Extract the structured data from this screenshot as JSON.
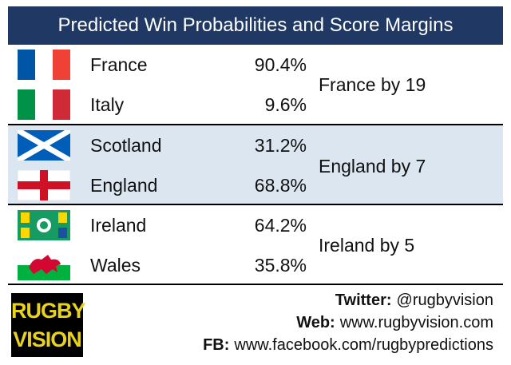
{
  "header": {
    "title": "Predicted Win Probabilities and Score Margins"
  },
  "matches": [
    {
      "teams": [
        {
          "name": "France",
          "probability": "90.4%"
        },
        {
          "name": "Italy",
          "probability": "9.6%"
        }
      ],
      "margin": "France by 19"
    },
    {
      "teams": [
        {
          "name": "Scotland",
          "probability": "31.2%"
        },
        {
          "name": "England",
          "probability": "68.8%"
        }
      ],
      "margin": "England by 7"
    },
    {
      "teams": [
        {
          "name": "Ireland",
          "probability": "64.2%"
        },
        {
          "name": "Wales",
          "probability": "35.8%"
        }
      ],
      "margin": "Ireland by 5"
    }
  ],
  "logo": {
    "lines": [
      "RUGBY",
      "VISION"
    ]
  },
  "footer": {
    "twitter": {
      "label": "Twitter:",
      "value": "@rugbyvision"
    },
    "web": {
      "label": "Web:",
      "value": "www.rugbyvision.com"
    },
    "fb": {
      "label": "FB:",
      "value": "www.facebook.com/rugbypredictions"
    }
  }
}
